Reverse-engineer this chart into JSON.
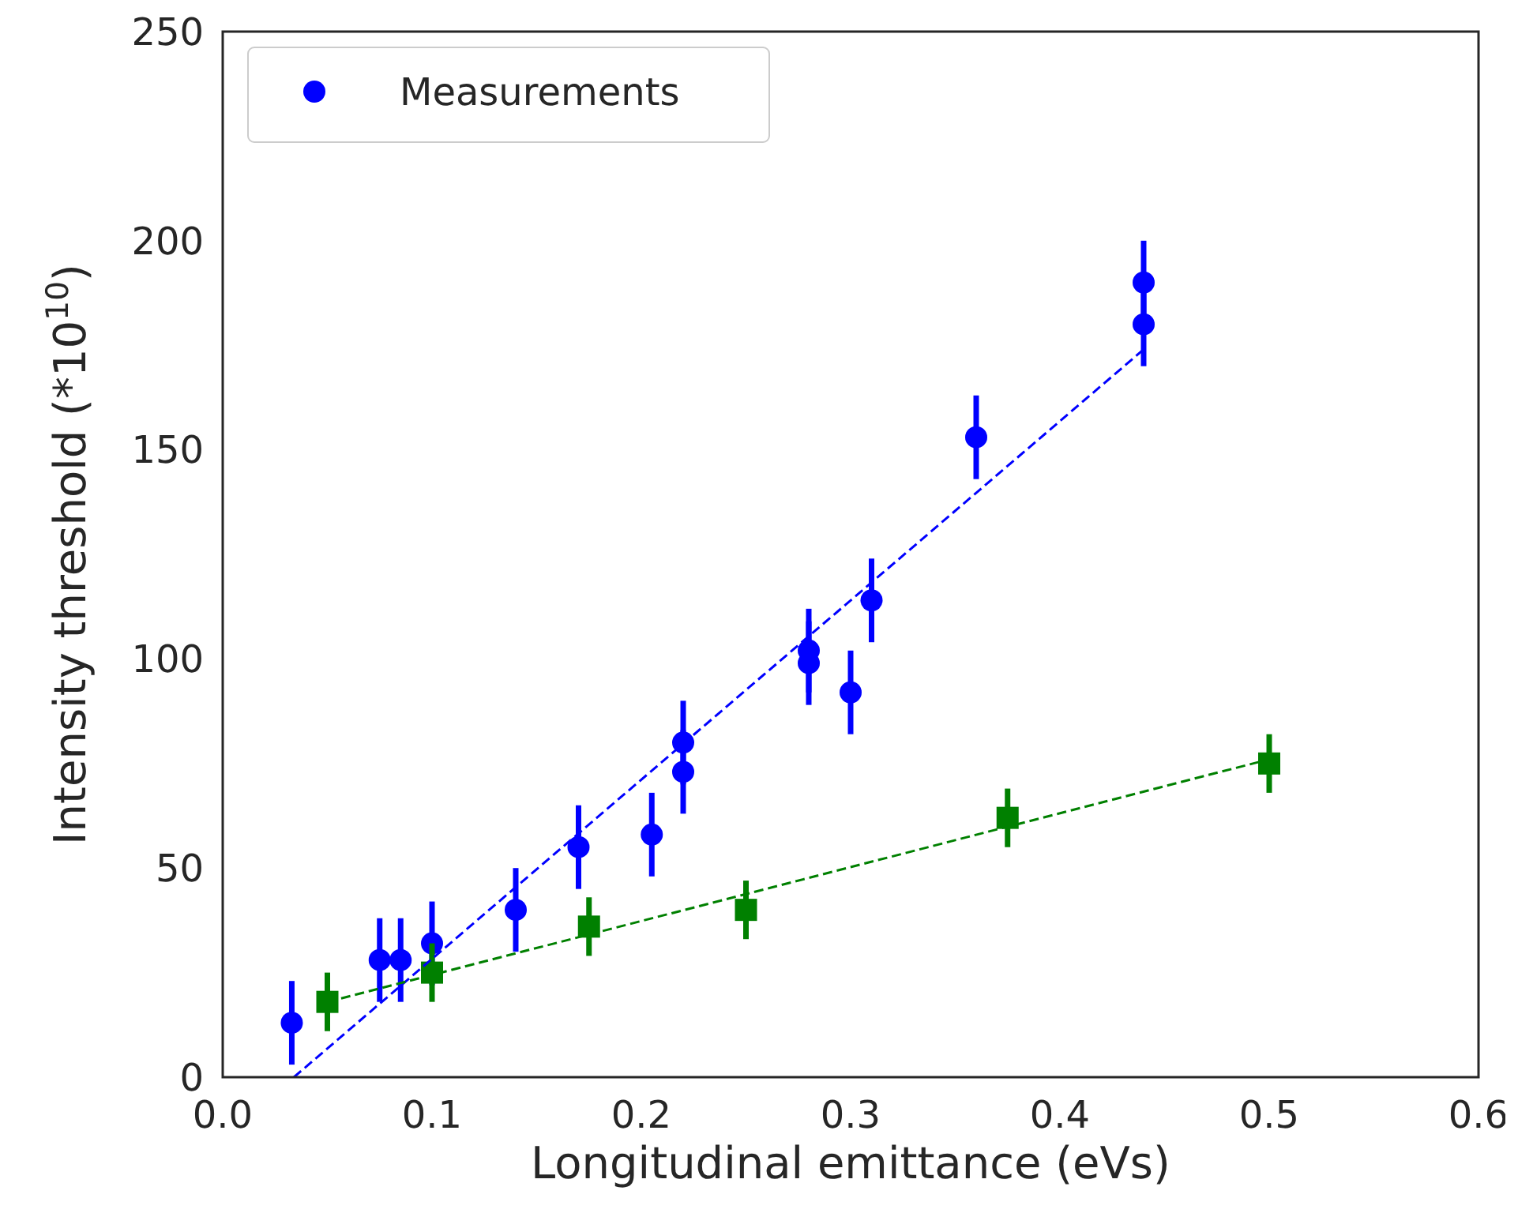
{
  "chart_data": {
    "type": "scatter",
    "xlabel": "Longitudinal emittance (eVs)",
    "ylabel": "Intensity threshold (*10$^{10}$)",
    "xlim": [
      0,
      0.6
    ],
    "ylim": [
      0,
      250
    ],
    "xticks": [
      {
        "value": 0,
        "label": "0.0"
      },
      {
        "value": 0.1,
        "label": "0.1"
      },
      {
        "value": 0.2,
        "label": "0.2"
      },
      {
        "value": 0.3,
        "label": "0.3"
      },
      {
        "value": 0.4,
        "label": "0.4"
      },
      {
        "value": 0.5,
        "label": "0.5"
      },
      {
        "value": 0.6,
        "label": "0.6"
      }
    ],
    "yticks": [
      0,
      50,
      100,
      150,
      200,
      250
    ],
    "grid": false,
    "legend": "top left",
    "series": [
      {
        "name": "Measurements",
        "color": "#0000ff",
        "marker": "circle",
        "x": [
          0.033,
          0.075,
          0.085,
          0.1,
          0.14,
          0.17,
          0.205,
          0.22,
          0.22,
          0.28,
          0.28,
          0.3,
          0.31,
          0.36,
          0.44,
          0.44
        ],
        "values": [
          13,
          28,
          28,
          32,
          40,
          55,
          58,
          80,
          73,
          102,
          99,
          92,
          114,
          153,
          190,
          180
        ],
        "errors": [
          10,
          10,
          10,
          10,
          10,
          10,
          10,
          10,
          10,
          10,
          10,
          10,
          10,
          10,
          10,
          10
        ]
      },
      {
        "color": "#008000",
        "marker": "square",
        "x": [
          0.05,
          0.1,
          0.175,
          0.25,
          0.375,
          0.5
        ],
        "values": [
          18,
          25,
          36,
          40,
          62,
          75
        ],
        "errors": [
          7,
          7,
          7,
          7,
          7,
          7
        ]
      },
      {
        "type": "line",
        "color": "#0000ff",
        "line_style": "dashed",
        "x": [
          0.034,
          0.44
        ],
        "values": [
          0,
          174
        ]
      },
      {
        "type": "line",
        "color": "#008000",
        "line_style": "dashed",
        "x": [
          0.05,
          0.5
        ],
        "values": [
          18,
          76
        ]
      }
    ]
  }
}
